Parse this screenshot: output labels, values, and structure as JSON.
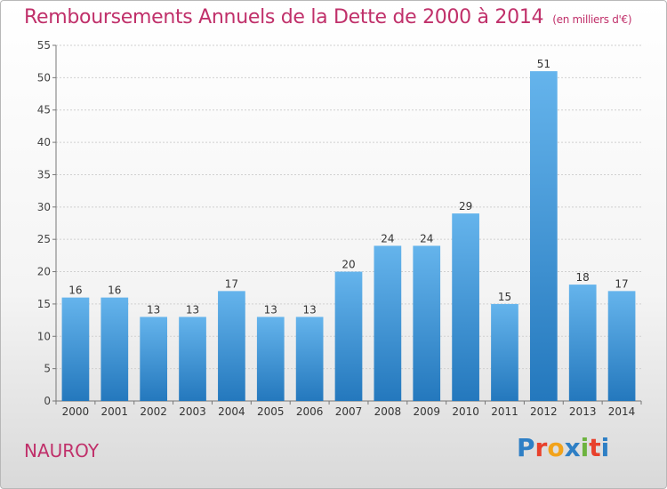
{
  "chart_title": "Remboursements Annuels de la Dette de 2000 à 2014",
  "chart_unit": "(en milliers d'€)",
  "commune": "NAUROY",
  "logo_text": "Proxiti",
  "logo_colors": [
    "#2e7fc5",
    "#e8412c",
    "#f2a31b",
    "#2e7fc5",
    "#6db33f",
    "#e8412c",
    "#2e7fc5"
  ],
  "colors": {
    "bar_top": "#65b4ec",
    "bar_bottom": "#2478bd",
    "title": "#c0306a",
    "grid": "#d0d0d0"
  },
  "chart_data": {
    "type": "bar",
    "title": "Remboursements Annuels de la Dette de 2000 à 2014",
    "xlabel": "",
    "ylabel": "",
    "categories": [
      "2000",
      "2001",
      "2002",
      "2003",
      "2004",
      "2005",
      "2006",
      "2007",
      "2008",
      "2009",
      "2010",
      "2011",
      "2012",
      "2013",
      "2014"
    ],
    "values": [
      16,
      16,
      13,
      13,
      17,
      13,
      13,
      20,
      24,
      24,
      29,
      15,
      51,
      18,
      17
    ],
    "ylim": [
      0,
      55
    ],
    "yticks": [
      0,
      5,
      10,
      15,
      20,
      25,
      30,
      35,
      40,
      45,
      50,
      55
    ],
    "grid": true,
    "legend": "none"
  }
}
